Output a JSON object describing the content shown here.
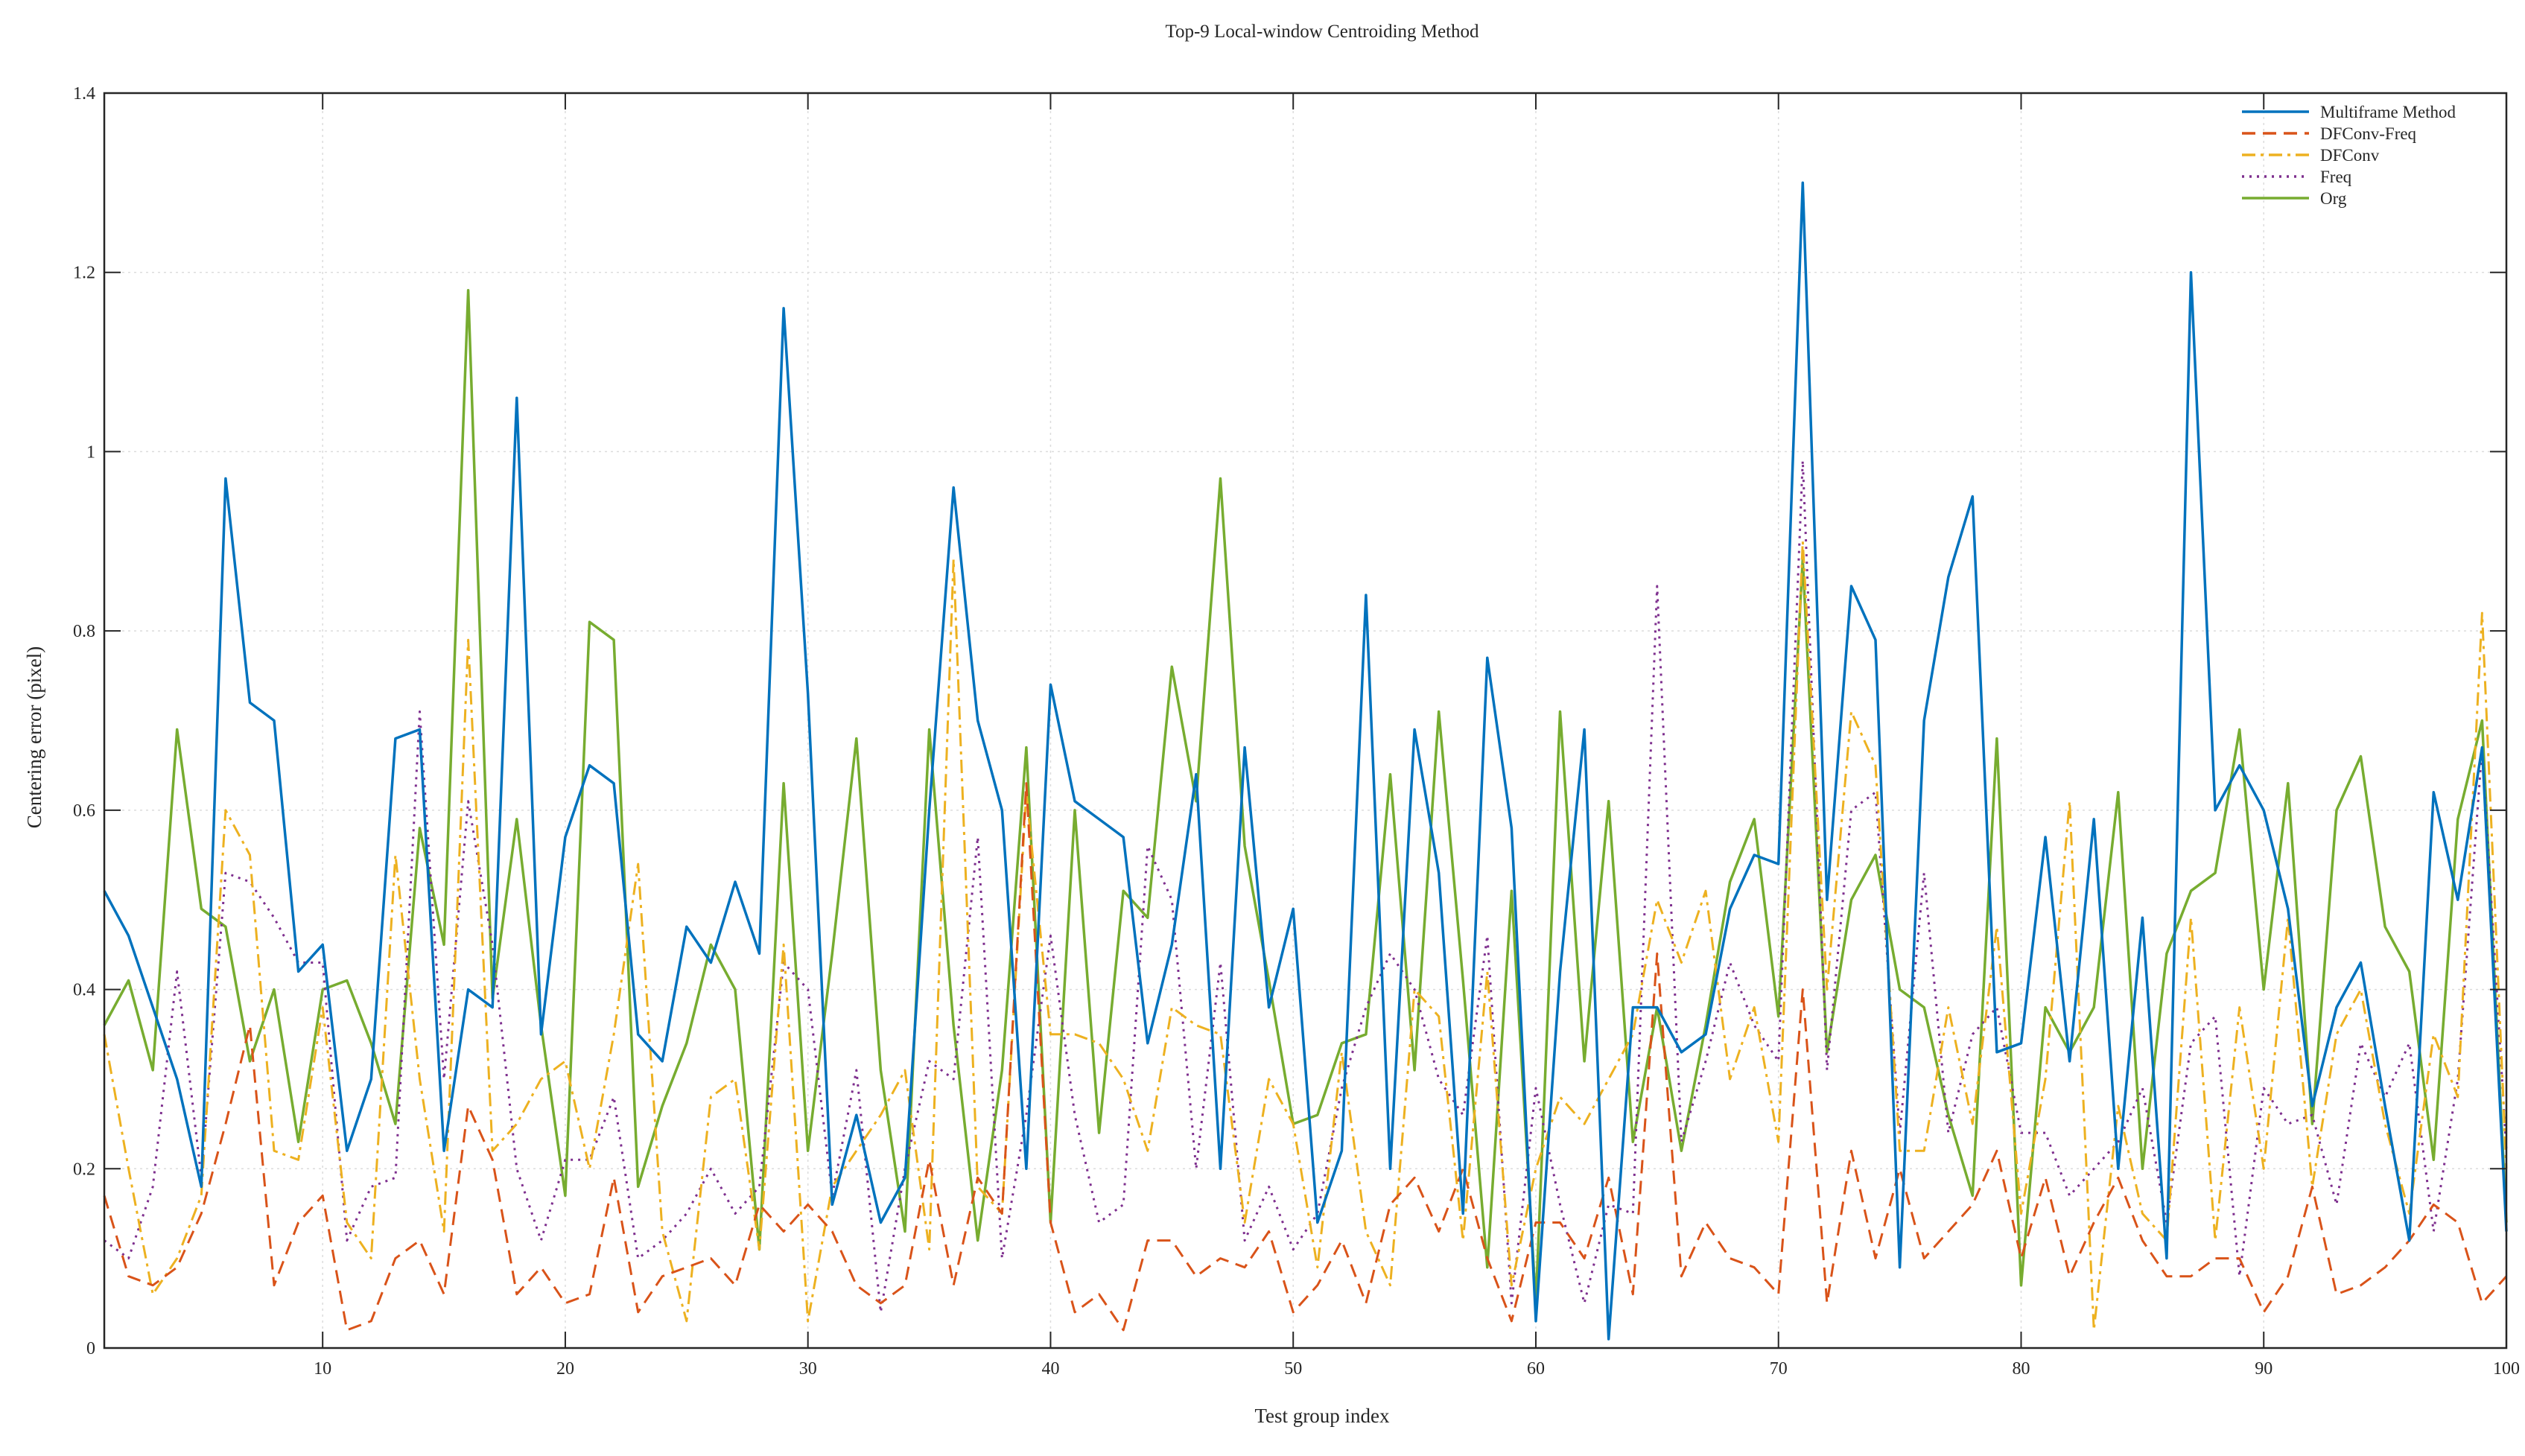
{
  "chart_data": {
    "type": "line",
    "title": "Top-9 Local-window Centroiding Method",
    "xlabel": "Test group index",
    "ylabel": "Centering error (pixel)",
    "xlim": [
      1,
      100
    ],
    "ylim": [
      0,
      1.4
    ],
    "xticks": [
      10,
      20,
      30,
      40,
      50,
      60,
      70,
      80,
      90,
      100
    ],
    "yticks": [
      0,
      0.2,
      0.4,
      0.6,
      0.8,
      1,
      1.2,
      1.4
    ],
    "xtick_labels": [
      "10",
      "20",
      "30",
      "40",
      "50",
      "60",
      "70",
      "80",
      "90",
      "100"
    ],
    "ytick_labels": [
      "0",
      "0.2",
      "0.4",
      "0.6",
      "0.8",
      "1",
      "1.2",
      "1.4"
    ],
    "grid": true,
    "legend_position": "top-right",
    "x": [
      1,
      2,
      3,
      4,
      5,
      6,
      7,
      8,
      9,
      10,
      11,
      12,
      13,
      14,
      15,
      16,
      17,
      18,
      19,
      20,
      21,
      22,
      23,
      24,
      25,
      26,
      27,
      28,
      29,
      30,
      31,
      32,
      33,
      34,
      35,
      36,
      37,
      38,
      39,
      40,
      41,
      42,
      43,
      44,
      45,
      46,
      47,
      48,
      49,
      50,
      51,
      52,
      53,
      54,
      55,
      56,
      57,
      58,
      59,
      60,
      61,
      62,
      63,
      64,
      65,
      66,
      67,
      68,
      69,
      70,
      71,
      72,
      73,
      74,
      75,
      76,
      77,
      78,
      79,
      80,
      81,
      82,
      83,
      84,
      85,
      86,
      87,
      88,
      89,
      90,
      91,
      92,
      93,
      94,
      95,
      96,
      97,
      98,
      99,
      100
    ],
    "series": [
      {
        "name": "Multiframe Method",
        "color": "#0072BD",
        "dash": "solid",
        "values": [
          0.51,
          0.46,
          0.38,
          0.3,
          0.18,
          0.97,
          0.72,
          0.7,
          0.42,
          0.45,
          0.22,
          0.3,
          0.68,
          0.69,
          0.22,
          0.4,
          0.38,
          1.06,
          0.35,
          0.57,
          0.65,
          0.63,
          0.35,
          0.32,
          0.47,
          0.43,
          0.52,
          0.44,
          1.16,
          0.73,
          0.16,
          0.26,
          0.14,
          0.19,
          0.6,
          0.96,
          0.7,
          0.6,
          0.2,
          0.74,
          0.61,
          0.59,
          0.57,
          0.34,
          0.45,
          0.64,
          0.2,
          0.67,
          0.38,
          0.49,
          0.14,
          0.22,
          0.84,
          0.2,
          0.69,
          0.53,
          0.15,
          0.77,
          0.58,
          0.03,
          0.42,
          0.69,
          0.01,
          0.38,
          0.38,
          0.33,
          0.35,
          0.49,
          0.55,
          0.54,
          1.3,
          0.5,
          0.85,
          0.79,
          0.09,
          0.7,
          0.86,
          0.95,
          0.33,
          0.34,
          0.57,
          0.32,
          0.59,
          0.2,
          0.48,
          0.1,
          1.2,
          0.6,
          0.65,
          0.6,
          0.49,
          0.27,
          0.38,
          0.43,
          0.27,
          0.12,
          0.62,
          0.5,
          0.67,
          0.13
        ]
      },
      {
        "name": "DFConv-Freq",
        "color": "#D95319",
        "dash": "dashed",
        "values": [
          0.17,
          0.08,
          0.07,
          0.09,
          0.15,
          0.25,
          0.36,
          0.07,
          0.14,
          0.17,
          0.02,
          0.03,
          0.1,
          0.12,
          0.06,
          0.27,
          0.21,
          0.06,
          0.09,
          0.05,
          0.06,
          0.19,
          0.04,
          0.08,
          0.09,
          0.1,
          0.07,
          0.16,
          0.13,
          0.16,
          0.13,
          0.07,
          0.05,
          0.07,
          0.21,
          0.07,
          0.19,
          0.15,
          0.63,
          0.14,
          0.04,
          0.06,
          0.02,
          0.12,
          0.12,
          0.08,
          0.1,
          0.09,
          0.13,
          0.04,
          0.07,
          0.12,
          0.05,
          0.16,
          0.19,
          0.13,
          0.2,
          0.1,
          0.03,
          0.14,
          0.14,
          0.1,
          0.19,
          0.06,
          0.44,
          0.08,
          0.14,
          0.1,
          0.09,
          0.06,
          0.4,
          0.05,
          0.22,
          0.1,
          0.2,
          0.1,
          0.13,
          0.16,
          0.22,
          0.1,
          0.19,
          0.08,
          0.14,
          0.19,
          0.12,
          0.08,
          0.08,
          0.1,
          0.1,
          0.04,
          0.08,
          0.18,
          0.06,
          0.07,
          0.09,
          0.12,
          0.16,
          0.14,
          0.05,
          0.08
        ]
      },
      {
        "name": "DFConv",
        "color": "#EDB120",
        "dash": "dashdot",
        "values": [
          0.35,
          0.2,
          0.06,
          0.1,
          0.17,
          0.6,
          0.55,
          0.22,
          0.21,
          0.38,
          0.14,
          0.1,
          0.55,
          0.3,
          0.13,
          0.79,
          0.22,
          0.25,
          0.3,
          0.32,
          0.2,
          0.35,
          0.54,
          0.13,
          0.03,
          0.28,
          0.3,
          0.11,
          0.45,
          0.03,
          0.18,
          0.22,
          0.26,
          0.31,
          0.11,
          0.88,
          0.18,
          0.15,
          0.62,
          0.35,
          0.35,
          0.34,
          0.3,
          0.22,
          0.38,
          0.36,
          0.35,
          0.14,
          0.3,
          0.25,
          0.09,
          0.33,
          0.13,
          0.07,
          0.4,
          0.37,
          0.12,
          0.42,
          0.07,
          0.2,
          0.28,
          0.25,
          0.3,
          0.35,
          0.5,
          0.43,
          0.51,
          0.3,
          0.38,
          0.23,
          0.9,
          0.4,
          0.71,
          0.65,
          0.22,
          0.22,
          0.38,
          0.25,
          0.47,
          0.15,
          0.3,
          0.61,
          0.02,
          0.27,
          0.15,
          0.12,
          0.48,
          0.12,
          0.38,
          0.2,
          0.48,
          0.18,
          0.35,
          0.4,
          0.25,
          0.15,
          0.35,
          0.28,
          0.82,
          0.2
        ]
      },
      {
        "name": "Freq",
        "color": "#7E2F8E",
        "dash": "dotted",
        "values": [
          0.12,
          0.1,
          0.18,
          0.42,
          0.19,
          0.53,
          0.52,
          0.48,
          0.43,
          0.43,
          0.12,
          0.18,
          0.19,
          0.71,
          0.3,
          0.61,
          0.45,
          0.2,
          0.12,
          0.21,
          0.21,
          0.28,
          0.1,
          0.12,
          0.15,
          0.2,
          0.15,
          0.18,
          0.43,
          0.4,
          0.17,
          0.31,
          0.04,
          0.2,
          0.32,
          0.3,
          0.57,
          0.1,
          0.26,
          0.46,
          0.26,
          0.14,
          0.16,
          0.56,
          0.5,
          0.2,
          0.43,
          0.12,
          0.18,
          0.11,
          0.15,
          0.29,
          0.38,
          0.44,
          0.4,
          0.3,
          0.26,
          0.46,
          0.05,
          0.29,
          0.16,
          0.05,
          0.16,
          0.15,
          0.85,
          0.23,
          0.32,
          0.43,
          0.36,
          0.32,
          0.99,
          0.31,
          0.6,
          0.62,
          0.24,
          0.53,
          0.24,
          0.35,
          0.38,
          0.24,
          0.24,
          0.17,
          0.2,
          0.23,
          0.29,
          0.14,
          0.34,
          0.37,
          0.08,
          0.29,
          0.25,
          0.26,
          0.16,
          0.34,
          0.28,
          0.34,
          0.13,
          0.3,
          0.67,
          0.22
        ]
      },
      {
        "name": "Org",
        "color": "#77AC30",
        "dash": "solid",
        "values": [
          0.36,
          0.41,
          0.31,
          0.69,
          0.49,
          0.47,
          0.32,
          0.4,
          0.23,
          0.4,
          0.41,
          0.34,
          0.25,
          0.58,
          0.45,
          1.18,
          0.39,
          0.59,
          0.36,
          0.17,
          0.81,
          0.79,
          0.18,
          0.27,
          0.34,
          0.45,
          0.4,
          0.11,
          0.63,
          0.22,
          0.44,
          0.68,
          0.31,
          0.13,
          0.69,
          0.36,
          0.12,
          0.31,
          0.67,
          0.14,
          0.6,
          0.24,
          0.51,
          0.48,
          0.76,
          0.61,
          0.97,
          0.56,
          0.41,
          0.25,
          0.26,
          0.34,
          0.35,
          0.64,
          0.31,
          0.71,
          0.41,
          0.09,
          0.51,
          0.05,
          0.71,
          0.32,
          0.61,
          0.23,
          0.38,
          0.22,
          0.36,
          0.52,
          0.59,
          0.37,
          0.88,
          0.33,
          0.5,
          0.55,
          0.4,
          0.38,
          0.26,
          0.17,
          0.68,
          0.07,
          0.38,
          0.33,
          0.38,
          0.62,
          0.2,
          0.44,
          0.51,
          0.53,
          0.69,
          0.4,
          0.63,
          0.25,
          0.6,
          0.66,
          0.47,
          0.42,
          0.21,
          0.59,
          0.7,
          0.14
        ]
      }
    ]
  }
}
